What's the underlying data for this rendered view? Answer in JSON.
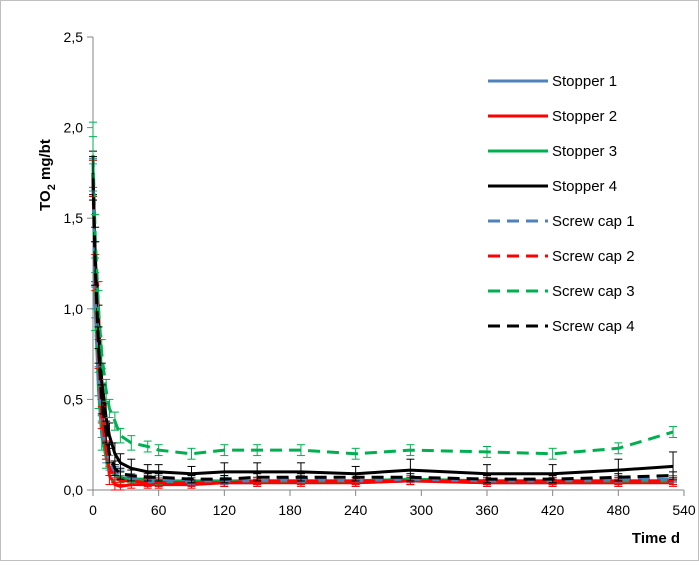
{
  "chart_data": {
    "type": "line",
    "title": "",
    "ylabel_main": "TO",
    "ylabel_sub": "2",
    "ylabel_unit": " mg/bt",
    "xlabel": "Time d",
    "xlim": [
      0,
      540
    ],
    "ylim": [
      0,
      2.5
    ],
    "x_ticks": [
      0,
      60,
      120,
      180,
      240,
      300,
      360,
      420,
      480,
      540
    ],
    "y_ticks": [
      0,
      0.5,
      1.0,
      1.5,
      2.0,
      2.5
    ],
    "x_tick_labels": [
      "0",
      "60",
      "120",
      "180",
      "240",
      "300",
      "360",
      "420",
      "480",
      "540"
    ],
    "y_tick_labels": [
      "0,0",
      "0,5",
      "1,0",
      "1,5",
      "2,0",
      "2,5"
    ],
    "legend_position": "top-right",
    "series": [
      {
        "name": "Stopper 1",
        "color": "#4f81bd",
        "dash": "solid",
        "x": [
          0,
          2,
          5,
          8,
          12,
          15,
          20,
          25,
          35,
          50,
          60,
          90,
          120,
          150,
          190,
          240,
          290,
          360,
          420,
          480,
          530
        ],
        "y": [
          1.75,
          1.1,
          0.6,
          0.35,
          0.2,
          0.12,
          0.08,
          0.06,
          0.05,
          0.04,
          0.04,
          0.04,
          0.04,
          0.04,
          0.05,
          0.04,
          0.05,
          0.04,
          0.04,
          0.04,
          0.05
        ],
        "err": [
          0.08,
          0.1,
          0.08,
          0.06,
          0.05,
          0.04,
          0.03,
          0.02,
          0.02,
          0.02,
          0.02,
          0.02,
          0.02,
          0.02,
          0.02,
          0.02,
          0.02,
          0.02,
          0.02,
          0.02,
          0.02
        ]
      },
      {
        "name": "Stopper 2",
        "color": "#ff0000",
        "dash": "solid",
        "x": [
          0,
          2,
          5,
          8,
          12,
          15,
          20,
          25,
          35,
          50,
          60,
          90,
          120,
          150,
          190,
          240,
          290,
          360,
          420,
          480,
          530
        ],
        "y": [
          1.72,
          1.25,
          1.0,
          0.45,
          0.25,
          0.08,
          0.03,
          0.02,
          0.03,
          0.03,
          0.03,
          0.03,
          0.04,
          0.04,
          0.04,
          0.04,
          0.05,
          0.04,
          0.04,
          0.04,
          0.04
        ],
        "err": [
          0.1,
          0.12,
          0.15,
          0.08,
          0.06,
          0.05,
          0.03,
          0.02,
          0.02,
          0.02,
          0.02,
          0.02,
          0.02,
          0.02,
          0.02,
          0.02,
          0.02,
          0.02,
          0.02,
          0.02,
          0.02
        ]
      },
      {
        "name": "Stopper 3",
        "color": "#00b050",
        "dash": "solid",
        "x": [
          0,
          2,
          5,
          8,
          12,
          15,
          20,
          25,
          35,
          50,
          60,
          90,
          120,
          150,
          190,
          240,
          290,
          360,
          420,
          480,
          530
        ],
        "y": [
          1.8,
          1.0,
          0.55,
          0.3,
          0.18,
          0.12,
          0.08,
          0.07,
          0.06,
          0.06,
          0.05,
          0.05,
          0.05,
          0.05,
          0.05,
          0.05,
          0.06,
          0.05,
          0.05,
          0.05,
          0.05
        ],
        "err": [
          0.15,
          0.12,
          0.1,
          0.08,
          0.06,
          0.04,
          0.03,
          0.03,
          0.02,
          0.02,
          0.02,
          0.02,
          0.02,
          0.02,
          0.02,
          0.02,
          0.02,
          0.02,
          0.02,
          0.02,
          0.02
        ]
      },
      {
        "name": "Stopper 4",
        "color": "#000000",
        "dash": "solid",
        "x": [
          0,
          2,
          5,
          8,
          12,
          15,
          20,
          25,
          35,
          50,
          60,
          90,
          120,
          150,
          190,
          240,
          290,
          360,
          420,
          480,
          530
        ],
        "y": [
          1.75,
          1.3,
          0.9,
          0.6,
          0.4,
          0.3,
          0.2,
          0.15,
          0.12,
          0.1,
          0.1,
          0.09,
          0.1,
          0.1,
          0.1,
          0.09,
          0.11,
          0.09,
          0.09,
          0.11,
          0.13
        ],
        "err": [
          0.12,
          0.15,
          0.12,
          0.1,
          0.08,
          0.07,
          0.06,
          0.05,
          0.05,
          0.04,
          0.04,
          0.04,
          0.05,
          0.05,
          0.05,
          0.04,
          0.06,
          0.05,
          0.05,
          0.06,
          0.08
        ]
      },
      {
        "name": "Screw cap 1",
        "color": "#4f81bd",
        "dash": "dashed",
        "x": [
          0,
          2,
          5,
          8,
          12,
          15,
          20,
          25,
          35,
          50,
          60,
          90,
          120,
          150,
          190,
          240,
          290,
          360,
          420,
          480,
          530
        ],
        "y": [
          1.7,
          1.05,
          0.6,
          0.35,
          0.22,
          0.15,
          0.1,
          0.08,
          0.07,
          0.06,
          0.06,
          0.05,
          0.05,
          0.05,
          0.06,
          0.05,
          0.06,
          0.05,
          0.05,
          0.06,
          0.06
        ],
        "err": [
          0.1,
          0.1,
          0.08,
          0.06,
          0.05,
          0.04,
          0.03,
          0.03,
          0.02,
          0.02,
          0.02,
          0.02,
          0.02,
          0.02,
          0.02,
          0.02,
          0.02,
          0.02,
          0.02,
          0.02,
          0.02
        ]
      },
      {
        "name": "Screw cap 2",
        "color": "#ff0000",
        "dash": "dashed",
        "x": [
          0,
          2,
          5,
          8,
          12,
          15,
          20,
          25,
          35,
          50,
          60,
          90,
          120,
          150,
          190,
          240,
          290,
          360,
          420,
          480,
          530
        ],
        "y": [
          1.72,
          1.2,
          0.75,
          0.4,
          0.22,
          0.12,
          0.07,
          0.05,
          0.05,
          0.04,
          0.04,
          0.04,
          0.04,
          0.05,
          0.05,
          0.05,
          0.05,
          0.05,
          0.05,
          0.05,
          0.05
        ],
        "err": [
          0.1,
          0.1,
          0.08,
          0.06,
          0.05,
          0.04,
          0.03,
          0.02,
          0.02,
          0.02,
          0.02,
          0.02,
          0.02,
          0.02,
          0.02,
          0.02,
          0.02,
          0.02,
          0.02,
          0.02,
          0.02
        ]
      },
      {
        "name": "Screw cap 3",
        "color": "#00b050",
        "dash": "dashed",
        "x": [
          0,
          2,
          5,
          8,
          12,
          15,
          20,
          25,
          35,
          50,
          60,
          90,
          120,
          150,
          190,
          240,
          290,
          360,
          420,
          480,
          530
        ],
        "y": [
          1.85,
          1.4,
          1.0,
          0.75,
          0.55,
          0.45,
          0.38,
          0.3,
          0.26,
          0.24,
          0.22,
          0.2,
          0.22,
          0.22,
          0.22,
          0.2,
          0.22,
          0.21,
          0.2,
          0.23,
          0.32
        ],
        "err": [
          0.18,
          0.12,
          0.1,
          0.08,
          0.06,
          0.05,
          0.05,
          0.04,
          0.04,
          0.03,
          0.03,
          0.03,
          0.03,
          0.03,
          0.03,
          0.03,
          0.03,
          0.03,
          0.03,
          0.03,
          0.03
        ]
      },
      {
        "name": "Screw cap 4",
        "color": "#000000",
        "dash": "dashed",
        "x": [
          0,
          2,
          5,
          8,
          12,
          15,
          20,
          25,
          35,
          50,
          60,
          90,
          120,
          150,
          190,
          240,
          290,
          360,
          420,
          480,
          530
        ],
        "y": [
          1.72,
          1.25,
          0.8,
          0.5,
          0.32,
          0.2,
          0.12,
          0.09,
          0.08,
          0.07,
          0.07,
          0.06,
          0.06,
          0.07,
          0.07,
          0.07,
          0.07,
          0.06,
          0.06,
          0.07,
          0.08
        ],
        "err": [
          0.12,
          0.12,
          0.1,
          0.08,
          0.06,
          0.05,
          0.04,
          0.03,
          0.03,
          0.02,
          0.02,
          0.02,
          0.02,
          0.02,
          0.02,
          0.02,
          0.02,
          0.02,
          0.02,
          0.02,
          0.02
        ]
      }
    ]
  }
}
